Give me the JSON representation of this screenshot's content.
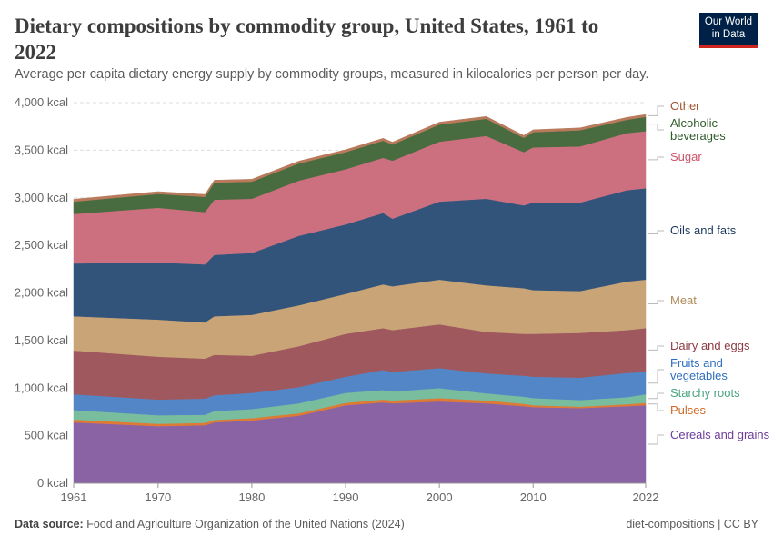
{
  "header": {
    "title": "Dietary compositions by commodity group, United States, 1961 to 2022",
    "subtitle": "Average per capita dietary energy supply by commodity groups, measured in kilocalories per person per day.",
    "logo": "Our World in Data"
  },
  "footer": {
    "source_label": "Data source:",
    "source": "Food and Agriculture Organization of the United Nations (2024)",
    "license": "diet-compositions | CC BY"
  },
  "chart_data": {
    "type": "area",
    "stacked": true,
    "title": "Dietary compositions by commodity group, United States, 1961 to 2022",
    "ylim": [
      0,
      4000
    ],
    "xlim": [
      1961,
      2022
    ],
    "yticks": [
      0,
      500,
      1000,
      1500,
      2000,
      2500,
      3000,
      3500,
      4000
    ],
    "ytick_labels": [
      "0 kcal",
      "500 kcal",
      "1,000 kcal",
      "1,500 kcal",
      "2,000 kcal",
      "2,500 kcal",
      "3,000 kcal",
      "3,500 kcal",
      "4,000 kcal"
    ],
    "xticks": [
      1961,
      1970,
      1980,
      1990,
      2000,
      2010,
      2022
    ],
    "xtick_labels": [
      "1961",
      "1970",
      "1980",
      "1990",
      "2000",
      "2010",
      "2022"
    ],
    "grid": "horizontal dashed",
    "legend": "right (inline labels)",
    "x": [
      1961,
      1970,
      1975,
      1976,
      1980,
      1985,
      1990,
      1994,
      1995,
      2000,
      2005,
      2009,
      2010,
      2015,
      2020,
      2022
    ],
    "series": [
      {
        "name": "Cereals and grains",
        "color": "#8a63a5",
        "label_color": "#6d3d99",
        "values": [
          640,
          600,
          610,
          640,
          660,
          710,
          820,
          850,
          840,
          860,
          840,
          810,
          800,
          790,
          810,
          820
        ]
      },
      {
        "name": "Pulses",
        "color": "#df7a35",
        "label_color": "#d06a24",
        "values": [
          30,
          25,
          25,
          25,
          25,
          25,
          25,
          30,
          30,
          35,
          30,
          25,
          20,
          15,
          20,
          25
        ]
      },
      {
        "name": "Starchy roots",
        "color": "#77bd9e",
        "label_color": "#4aa37f",
        "values": [
          100,
          90,
          85,
          95,
          95,
          105,
          105,
          100,
          95,
          105,
          75,
          75,
          75,
          70,
          75,
          90
        ]
      },
      {
        "name": "Fruits and vegetables",
        "color": "#5286c7",
        "label_color": "#2e6ec0",
        "values": [
          165,
          165,
          170,
          165,
          170,
          170,
          170,
          210,
          205,
          210,
          210,
          220,
          225,
          235,
          255,
          235
        ]
      },
      {
        "name": "Dairy and eggs",
        "color": "#a0585f",
        "label_color": "#8e3a44",
        "values": [
          460,
          450,
          420,
          425,
          390,
          430,
          450,
          440,
          440,
          460,
          435,
          440,
          450,
          470,
          450,
          460
        ]
      },
      {
        "name": "Meat",
        "color": "#c8a477",
        "label_color": "#b08a58",
        "values": [
          360,
          390,
          380,
          405,
          430,
          430,
          420,
          460,
          460,
          470,
          490,
          480,
          460,
          440,
          510,
          510
        ]
      },
      {
        "name": "Oils and fats",
        "color": "#32547b",
        "label_color": "#1c3a60",
        "values": [
          555,
          600,
          610,
          645,
          650,
          730,
          730,
          750,
          710,
          820,
          910,
          870,
          920,
          930,
          960,
          960
        ]
      },
      {
        "name": "Sugar",
        "color": "#cc707f",
        "label_color": "#cc5468",
        "values": [
          520,
          575,
          550,
          580,
          570,
          580,
          580,
          580,
          610,
          630,
          660,
          560,
          580,
          590,
          600,
          600
        ]
      },
      {
        "name": "Alcoholic beverages",
        "color": "#486c3f",
        "label_color": "#2e5a2a",
        "values": [
          130,
          145,
          160,
          180,
          180,
          180,
          180,
          180,
          170,
          180,
          180,
          150,
          160,
          170,
          140,
          150
        ]
      },
      {
        "name": "Other",
        "color": "#b97a5c",
        "label_color": "#a0522d",
        "values": [
          25,
          25,
          25,
          25,
          25,
          25,
          25,
          25,
          25,
          25,
          25,
          25,
          25,
          25,
          25,
          25
        ]
      }
    ]
  }
}
